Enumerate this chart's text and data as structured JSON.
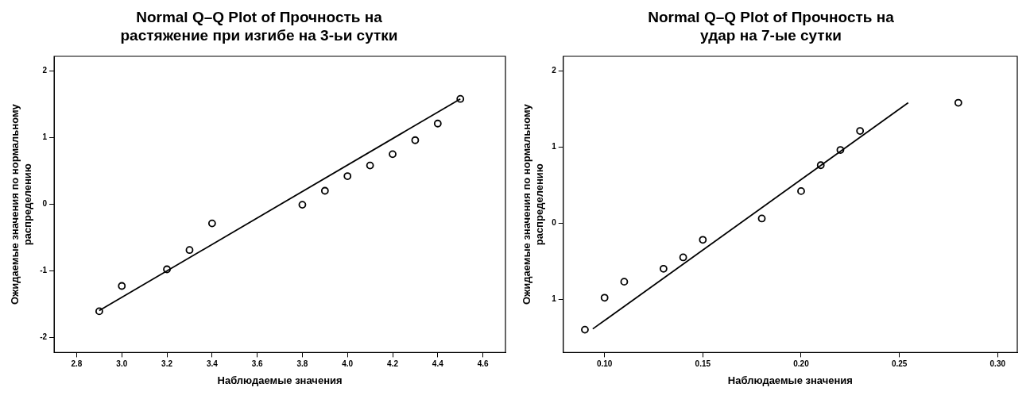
{
  "chart_data": [
    {
      "type": "scatter",
      "title": "Normal Q–Q Plot of Прочность на растяжение при изгибе на 3-ьи сутки",
      "xlabel": "Наблюдаемые значения",
      "ylabel": "Ожидаемые значения по нормальному распределению",
      "xlim": [
        2.7,
        4.7
      ],
      "xticks": [
        {
          "value": 2.8,
          "label": "2.8"
        },
        {
          "value": 3.0,
          "label": "3.0"
        },
        {
          "value": 3.2,
          "label": "3.2"
        },
        {
          "value": 3.4,
          "label": "3.4"
        },
        {
          "value": 3.6,
          "label": "3.6"
        },
        {
          "value": 3.8,
          "label": "3.8"
        },
        {
          "value": 4.0,
          "label": "4.0"
        },
        {
          "value": 4.2,
          "label": "4.2"
        },
        {
          "value": 4.4,
          "label": "4.4"
        },
        {
          "value": 4.6,
          "label": "4.6"
        }
      ],
      "ylim": [
        -2.23,
        2.22
      ],
      "yticks": [
        -2,
        -1,
        0,
        1,
        2
      ],
      "grid": false,
      "legend": false,
      "marker": "circle",
      "series": [
        {
          "color": "#000000",
          "x": [
            2.9,
            3.0,
            3.2,
            3.3,
            3.4,
            3.8,
            3.9,
            4.0,
            4.1,
            4.2,
            4.3,
            4.4,
            4.5
          ],
          "values": [
            -1.61,
            -1.23,
            -0.98,
            -0.69,
            -0.29,
            -0.01,
            0.2,
            0.42,
            0.58,
            0.75,
            0.96,
            1.21,
            1.58
          ]
        },
        {
          "type": "line",
          "color": "#000000",
          "marker": "none",
          "line_style": "solid",
          "x": [
            2.9,
            4.5
          ],
          "values": [
            -1.6,
            1.58
          ]
        }
      ]
    },
    {
      "type": "scatter",
      "title": "Normal Q–Q Plot of Прочность на удар на 7-ые сутки",
      "xlabel": "Наблюдаемые значения",
      "ylabel": "Ожидаемые значения по нормальному распределению",
      "xlim": [
        0.079,
        0.31
      ],
      "xticks": [
        {
          "value": 0.1,
          "label": "0.10"
        },
        {
          "value": 0.15,
          "label": "0.15"
        },
        {
          "value": 0.2,
          "label": "0.20"
        },
        {
          "value": 0.25,
          "label": "0.25"
        },
        {
          "value": 0.3,
          "label": "0.30"
        }
      ],
      "ylim": [
        -1.7,
        2.19
      ],
      "yticks": [
        {
          "value": -1,
          "label": "1"
        },
        0,
        1,
        2
      ],
      "grid": false,
      "legend": false,
      "marker": "circle",
      "series": [
        {
          "color": "#000000",
          "x": [
            0.09,
            0.1,
            0.11,
            0.13,
            0.14,
            0.15,
            0.18,
            0.2,
            0.21,
            0.22,
            0.23,
            0.28
          ],
          "values": [
            -1.4,
            -0.98,
            -0.77,
            -0.6,
            -0.45,
            -0.22,
            0.06,
            0.42,
            0.76,
            0.96,
            1.21,
            1.58
          ]
        },
        {
          "type": "line",
          "color": "#000000",
          "marker": "none",
          "line_style": "solid",
          "x": [
            0.094,
            0.2545
          ],
          "values": [
            -1.39,
            1.58
          ]
        }
      ]
    }
  ]
}
